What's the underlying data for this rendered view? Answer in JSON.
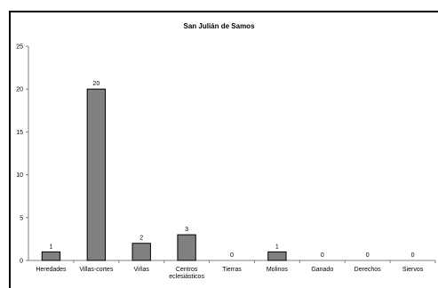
{
  "chart_data": {
    "type": "bar",
    "title": "San Julián de Samos",
    "xlabel": "",
    "ylabel": "",
    "categories": [
      [
        "Heredades"
      ],
      [
        "Villas-cortes"
      ],
      [
        "Viñas"
      ],
      [
        "Centros",
        "eclesiásticos"
      ],
      [
        "Tierras"
      ],
      [
        "Molinos"
      ],
      [
        "Ganado"
      ],
      [
        "Derechos"
      ],
      [
        "Siervos"
      ]
    ],
    "values": [
      1,
      20,
      2,
      3,
      0,
      1,
      0,
      0,
      0
    ],
    "ylim": [
      0,
      25
    ],
    "yticks": [
      0,
      5,
      10,
      15,
      20,
      25
    ],
    "grid": false,
    "colors": {
      "bar_fill": "#808080",
      "bar_stroke": "#000000",
      "plot_bg": "#ffffff",
      "axis": "#808080"
    }
  }
}
